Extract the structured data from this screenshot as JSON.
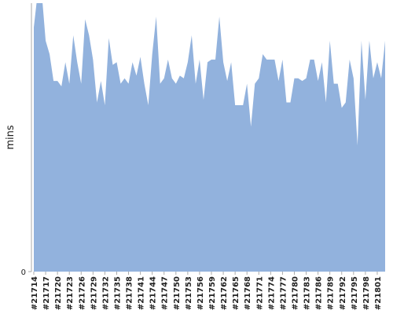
{
  "chart_data": {
    "type": "area",
    "y_label": "mins",
    "color": "#92b2dd",
    "categories": [
      "#21714",
      null,
      null,
      "#21717",
      null,
      null,
      "#21720",
      null,
      null,
      "#21723",
      null,
      null,
      "#21726",
      null,
      null,
      "#21729",
      null,
      null,
      "#21732",
      null,
      null,
      "#21735",
      null,
      null,
      "#21738",
      null,
      null,
      "#21741",
      null,
      null,
      "#21744",
      null,
      null,
      "#21747",
      null,
      null,
      "#21750",
      null,
      null,
      "#21753",
      null,
      null,
      "#21756",
      null,
      null,
      "#21759",
      null,
      null,
      "#21762",
      null,
      null,
      "#21765",
      null,
      null,
      "#21768",
      null,
      null,
      "#21771",
      null,
      null,
      "#21774",
      null,
      null,
      "#21777",
      null,
      null,
      "#21780",
      null,
      null,
      "#21783",
      null,
      null,
      "#21786",
      null,
      null,
      "#21789",
      null,
      null,
      "#21792",
      null,
      null,
      "#21795",
      null,
      null,
      "#21798",
      null,
      null,
      "#21801",
      null,
      null
    ],
    "values": [
      91,
      104,
      104,
      86,
      81,
      71,
      71,
      69,
      78,
      70,
      88,
      78,
      70,
      94,
      88,
      79,
      63,
      71,
      62,
      87,
      77,
      78,
      70,
      72,
      70,
      78,
      73,
      80,
      70,
      62,
      81,
      95,
      70,
      72,
      79,
      72,
      70,
      73,
      72,
      78,
      88,
      70,
      79,
      64,
      78,
      79,
      79,
      95,
      78,
      71,
      78,
      62,
      62,
      62,
      70,
      54,
      70,
      72,
      81,
      79,
      79,
      79,
      71,
      79,
      63,
      63,
      72,
      72,
      71,
      72,
      79,
      79,
      71,
      78,
      63,
      86,
      70,
      70,
      61,
      63,
      79,
      72,
      47,
      86,
      64,
      86,
      72,
      78,
      72,
      86
    ],
    "ylim": [
      0,
      100
    ],
    "yticks": [
      0
    ]
  }
}
